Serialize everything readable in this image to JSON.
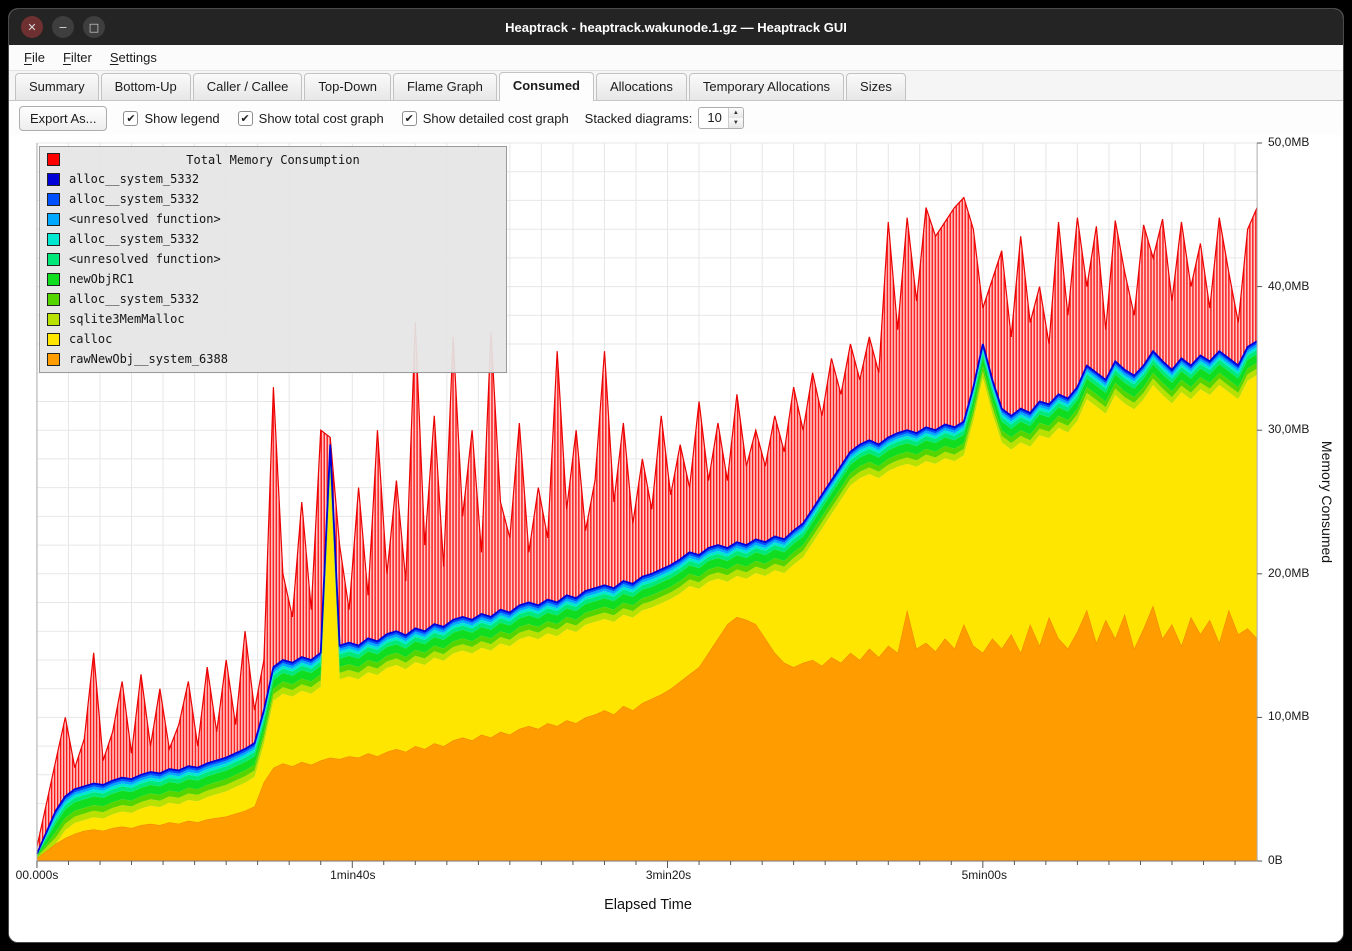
{
  "window": {
    "title": "Heaptrack - heaptrack.wakunode.1.gz — Heaptrack GUI",
    "controls": {
      "close": "✕",
      "minimize": "−",
      "maximize": "□"
    }
  },
  "menu": {
    "items": [
      {
        "label": "File"
      },
      {
        "label": "Filter"
      },
      {
        "label": "Settings"
      }
    ]
  },
  "tabs": {
    "active": "Consumed",
    "items": [
      "Summary",
      "Bottom-Up",
      "Caller / Callee",
      "Top-Down",
      "Flame Graph",
      "Consumed",
      "Allocations",
      "Temporary Allocations",
      "Sizes"
    ]
  },
  "toolbar": {
    "export_label": "Export As...",
    "checkboxes": [
      {
        "label": "Show legend",
        "checked": true
      },
      {
        "label": "Show total cost graph",
        "checked": true
      },
      {
        "label": "Show detailed cost graph",
        "checked": true
      }
    ],
    "stacked_label": "Stacked diagrams:",
    "stacked_value": "10"
  },
  "chart_data": {
    "type": "area",
    "title": "Total Memory Consumption",
    "xlabel": "Elapsed Time",
    "ylabel": "Memory Consumed",
    "units": "MB",
    "x_max": 387,
    "y_max": 50,
    "t_step": 3,
    "grid": true,
    "legend_position": "top-left",
    "x_ticks": [
      {
        "t": 0,
        "label": "00.000s"
      },
      {
        "t": 100,
        "label": "1min40s"
      },
      {
        "t": 200,
        "label": "3min20s"
      },
      {
        "t": 300,
        "label": "5min00s"
      }
    ],
    "y_ticks": [
      {
        "v": 0,
        "label": "0B"
      },
      {
        "v": 10,
        "label": "10,0MB"
      },
      {
        "v": 20,
        "label": "20,0MB"
      },
      {
        "v": 30,
        "label": "30,0MB"
      },
      {
        "v": 40,
        "label": "40,0MB"
      },
      {
        "v": 50,
        "label": "50,0MB"
      }
    ],
    "legend": [
      {
        "label": "Total Memory Consumption",
        "color": "#ff0000"
      },
      {
        "label": "alloc__system_5332",
        "color": "#0000d8"
      },
      {
        "label": "alloc__system_5332",
        "color": "#0050ff"
      },
      {
        "label": "<unresolved function>",
        "color": "#00a8ff"
      },
      {
        "label": "alloc__system_5332",
        "color": "#00e8d0"
      },
      {
        "label": "<unresolved function>",
        "color": "#00e878"
      },
      {
        "label": "newObjRC1",
        "color": "#10dc20"
      },
      {
        "label": "alloc__system_5332",
        "color": "#55d500"
      },
      {
        "label": "sqlite3MemMalloc",
        "color": "#b8e000"
      },
      {
        "label": "calloc",
        "color": "#ffe600"
      },
      {
        "label": "rawNewObj__system_6388",
        "color": "#ff9d00"
      }
    ],
    "colors": {
      "rawnewobj": "#ff9d00",
      "calloc": "#ffe600",
      "top_line": "#0000d8",
      "total_stroke": "#ea0000",
      "total_fill": "#ff0000"
    },
    "bands": [
      {
        "name": "sqlite3MemMalloc",
        "color": "#b8e000",
        "thickness": 0.45
      },
      {
        "name": "alloc__system_5332",
        "color": "#55d500",
        "thickness": 0.4
      },
      {
        "name": "newObjRC1",
        "color": "#10dc20",
        "thickness": 0.6
      },
      {
        "name": "<unresolved function>",
        "color": "#00e878",
        "thickness": 0.3
      },
      {
        "name": "alloc__system_5332",
        "color": "#00e8d0",
        "thickness": 0.2
      },
      {
        "name": "<unresolved function>",
        "color": "#00a8ff",
        "thickness": 0.18
      },
      {
        "name": "alloc__system_5332",
        "color": "#0050ff",
        "thickness": 0.22
      }
    ],
    "series": {
      "total_mb": [
        1,
        4,
        7,
        10,
        6.5,
        8.5,
        14.5,
        7,
        9,
        12.5,
        7.5,
        13,
        8,
        12,
        7.8,
        9.5,
        12.5,
        8,
        13.5,
        9,
        14,
        9.5,
        16,
        10.5,
        14,
        33,
        20,
        17,
        25,
        17.5,
        30,
        29.5,
        22,
        17.5,
        26,
        18.5,
        30,
        20,
        26.5,
        19.5,
        37.5,
        22,
        31,
        20.5,
        36.5,
        24,
        30,
        21.5,
        36.8,
        25,
        22.5,
        30.5,
        21.5,
        26,
        22.5,
        35.5,
        24.5,
        30,
        23,
        26.5,
        35.5,
        25,
        30.5,
        23.5,
        28,
        24.5,
        31,
        25.5,
        29,
        26,
        32,
        26.5,
        30.5,
        26.5,
        32.5,
        27.5,
        30,
        27.5,
        31,
        28.5,
        33,
        30,
        34,
        31,
        35,
        32.5,
        36,
        33.5,
        36.5,
        34,
        44.5,
        37,
        44.8,
        39,
        45.5,
        43.5,
        44.5,
        45.5,
        46.2,
        44,
        38.5,
        40.5,
        42.5,
        36.5,
        43.5,
        37.5,
        40,
        36,
        44.5,
        38,
        44.8,
        40,
        44.2,
        37,
        44.6,
        41,
        38,
        44.3,
        42,
        44.7,
        39,
        44.5,
        40,
        43,
        38.5,
        44.8,
        41,
        37.5,
        44,
        45.5
      ],
      "stacked_top_mb": [
        0.5,
        2,
        3.5,
        4.5,
        5,
        5.2,
        5.4,
        5.3,
        5.6,
        5.8,
        5.7,
        6,
        6.2,
        6.1,
        6.4,
        6.3,
        6.6,
        6.5,
        6.8,
        7,
        7.2,
        7.5,
        7.8,
        8.2,
        10.5,
        13.5,
        14,
        13.8,
        14.2,
        14,
        14.5,
        29,
        15,
        15.2,
        15,
        15.5,
        15.3,
        15.8,
        16,
        15.7,
        16.2,
        16,
        16.5,
        16.3,
        16.8,
        17,
        16.8,
        17.2,
        17,
        17.5,
        17.3,
        17.8,
        18,
        17.8,
        18.2,
        18,
        18.5,
        18.3,
        18.8,
        19,
        19.2,
        19,
        19.5,
        19.3,
        19.8,
        20,
        20.3,
        20.6,
        21,
        21.5,
        21.3,
        21.8,
        22,
        21.8,
        22.2,
        22,
        22.4,
        22.2,
        22.6,
        22.4,
        23,
        23.5,
        24.5,
        25.5,
        26.5,
        27.5,
        28.5,
        29,
        29.3,
        29,
        29.5,
        29.8,
        30,
        29.8,
        30.2,
        30,
        30.4,
        30.2,
        30.6,
        33,
        36,
        33.5,
        31.5,
        31,
        31.5,
        31.2,
        32,
        31.8,
        32.5,
        32.2,
        33,
        34.5,
        34,
        33.5,
        34.8,
        34.2,
        33.8,
        34.5,
        35.5,
        34.8,
        34.2,
        35,
        34.5,
        35.2,
        34.8,
        35.5,
        35,
        34.5,
        35.8,
        36.2
      ],
      "rawnewobj_top_mb": [
        0.2,
        0.7,
        1.2,
        1.6,
        1.9,
        2.1,
        2.2,
        2.1,
        2.3,
        2.4,
        2.3,
        2.5,
        2.6,
        2.5,
        2.7,
        2.6,
        2.8,
        2.7,
        2.9,
        3,
        3.1,
        3.3,
        3.5,
        3.8,
        5.5,
        6.5,
        6.8,
        6.6,
        6.9,
        6.7,
        7,
        7.2,
        7.1,
        7.3,
        7.2,
        7.5,
        7.3,
        7.6,
        7.8,
        7.6,
        8,
        7.8,
        8.2,
        8,
        8.4,
        8.6,
        8.4,
        8.8,
        8.6,
        9,
        8.8,
        9.2,
        9.4,
        9.2,
        9.6,
        9.4,
        9.8,
        9.6,
        10,
        10.2,
        10.5,
        10.2,
        10.8,
        10.5,
        11,
        11.3,
        11.6,
        12,
        12.5,
        13,
        13.5,
        14.5,
        15.5,
        16.5,
        17,
        16.8,
        16.5,
        15.5,
        14.5,
        13.8,
        13.5,
        13.8,
        14,
        13.6,
        14.2,
        13.8,
        14.5,
        14,
        14.8,
        14.2,
        15,
        14.5,
        17.5,
        14.8,
        15.2,
        14.6,
        15.5,
        14.8,
        16.5,
        15,
        14.5,
        15.5,
        14.8,
        15.8,
        14.5,
        16.5,
        15,
        17,
        15.5,
        14.8,
        16,
        17.5,
        15.2,
        16.8,
        15.5,
        17.2,
        14.8,
        16.2,
        17.8,
        15.5,
        16.5,
        15,
        17,
        15.8,
        16.8,
        15.2,
        17.5,
        15.8,
        16.2,
        15.5
      ]
    }
  }
}
